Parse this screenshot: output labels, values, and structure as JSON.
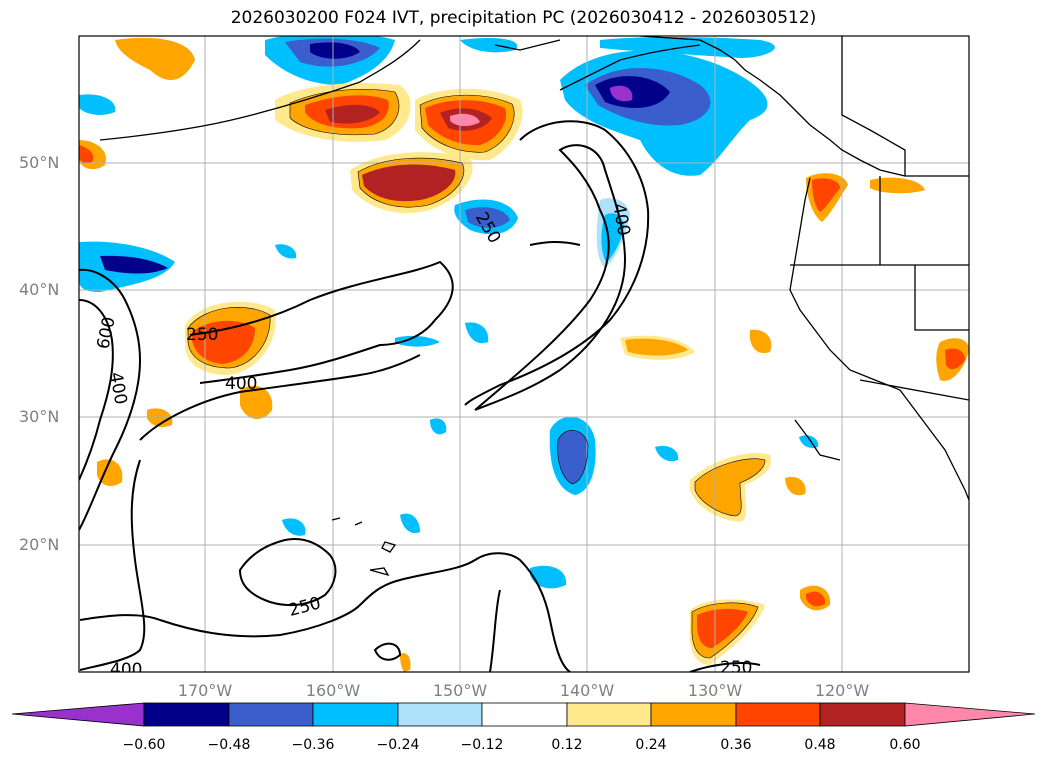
{
  "title": "2026030200 F024 IVT, precipitation PC (2026030412 - 2026030512)",
  "lat_labels": [
    "50°N",
    "40°N",
    "30°N",
    "20°N"
  ],
  "lon_labels": [
    "170°W",
    "160°W",
    "150°W",
    "140°W",
    "130°W",
    "120°W"
  ],
  "contour_labels": [
    "250",
    "400",
    "600",
    "400",
    "250",
    "400",
    "250",
    "400",
    "250"
  ],
  "colorbar": {
    "ticks": [
      "−0.60",
      "−0.48",
      "−0.36",
      "−0.24",
      "−0.12",
      "0.12",
      "0.24",
      "0.36",
      "0.48",
      "0.60"
    ],
    "colors": [
      "#9932cc",
      "#00008b",
      "#3a5fcd",
      "#00bfff",
      "#aee2fa",
      "#ffffff",
      "#ffe98c",
      "#ffa500",
      "#ff4500",
      "#b22222",
      "#ff88aa"
    ]
  }
}
